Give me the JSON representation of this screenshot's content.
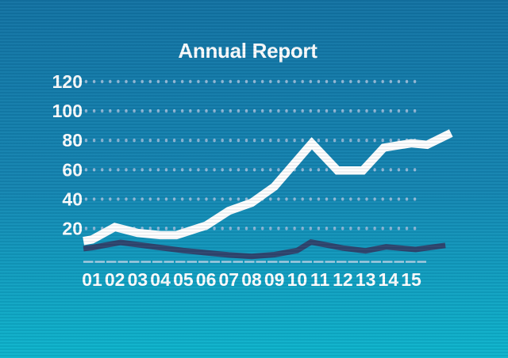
{
  "chart_data": {
    "type": "line",
    "title": "Annual Report",
    "xlabel": "",
    "ylabel": "",
    "categories": [
      "01",
      "02",
      "03",
      "04",
      "05",
      "06",
      "07",
      "08",
      "09",
      "10",
      "11",
      "12",
      "13",
      "14",
      "15"
    ],
    "y_ticks": [
      20,
      40,
      60,
      80,
      100,
      120
    ],
    "ylim": [
      0,
      130
    ],
    "grid": "horizontal dotted rows at each y tick",
    "legend": "none",
    "x_unit_note": "x values are category index units: 1 = label 01, 15 = label 15; fractional/overshoot x = line extends between/past labels",
    "series": [
      {
        "name": "primary-white-line",
        "color": "#ffffff",
        "points": [
          [
            0.62,
            11.5
          ],
          [
            1,
            12.5
          ],
          [
            2,
            21
          ],
          [
            3,
            17
          ],
          [
            4,
            15.5
          ],
          [
            4.7,
            15.5
          ],
          [
            6,
            22
          ],
          [
            7,
            32
          ],
          [
            8,
            37.5
          ],
          [
            9,
            48.5
          ],
          [
            10.64,
            78
          ],
          [
            11.77,
            59.5
          ],
          [
            12.88,
            59.5
          ],
          [
            13.8,
            75
          ],
          [
            15,
            78
          ],
          [
            15.7,
            77
          ],
          [
            16.75,
            85
          ]
        ]
      },
      {
        "name": "secondary-navy-line",
        "color": "#2e456e",
        "points": [
          [
            0.62,
            6.3
          ],
          [
            1,
            7
          ],
          [
            2.25,
            10.5
          ],
          [
            3,
            9
          ],
          [
            4,
            7
          ],
          [
            5,
            5
          ],
          [
            6,
            3.5
          ],
          [
            7,
            2
          ],
          [
            8,
            1
          ],
          [
            9,
            2.2
          ],
          [
            10,
            5
          ],
          [
            10.6,
            10.8
          ],
          [
            12,
            6.7
          ],
          [
            13,
            4.8
          ],
          [
            13.9,
            7.5
          ],
          [
            15.2,
            5.7
          ],
          [
            16.5,
            8.5
          ]
        ]
      }
    ]
  },
  "colors": {
    "bg_top": "#1273a3",
    "bg_bottom": "#0db5cd",
    "grid_dot": "#9bbcd9",
    "axis_dash": "#a5cadf",
    "label_text": "#ffffff",
    "line_primary": "#ffffff",
    "line_secondary": "#2e456e"
  }
}
